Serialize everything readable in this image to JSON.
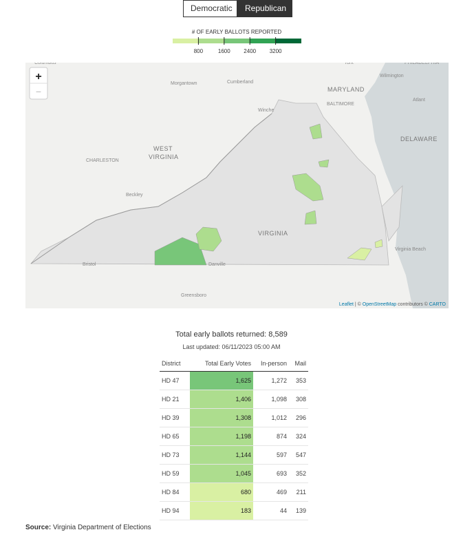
{
  "toggle": {
    "options": [
      "Democratic",
      "Republican"
    ],
    "active": 1
  },
  "legend": {
    "title": "# OF EARLY BALLOTS REPORTED",
    "range": [
      0,
      4000
    ],
    "ticks": [
      800,
      1600,
      2400,
      3200
    ],
    "colors": [
      "#d9f0a3",
      "#addd8e",
      "#78c679",
      "#31a354",
      "#006837"
    ]
  },
  "map": {
    "zoom_in": "+",
    "zoom_out": "−",
    "labels": [
      "Columbus",
      "York",
      "PHILADELPHIA",
      "Wilmington",
      "Morgantown",
      "Cumberland",
      "MARYLAND",
      "BALTIMORE",
      "Atlant",
      "Winche",
      "WEST",
      "VIRGINIA",
      "CHARLESTON",
      "DELAWARE",
      "Beckley",
      "VIRGINIA",
      "Bristol",
      "Virginia Beach",
      "Greensboro",
      "Danville"
    ],
    "attribution": {
      "leaflet": "Leaflet",
      "sep": " | © ",
      "osm": "OpenStreetMap",
      "mid": " contributors © ",
      "carto": "CARTO"
    }
  },
  "summary": {
    "total_label": "Total early ballots returned:",
    "total": "8,589",
    "updated": "Last updated: 06/11/2023 05:00 AM"
  },
  "table": {
    "headers": [
      "District",
      "Total Early Votes",
      "In-person",
      "Mail"
    ],
    "rows": [
      [
        "HD 47",
        {
          "value": 1625,
          "label": "1,625"
        },
        "1,272",
        "353"
      ],
      [
        "HD 21",
        {
          "value": 1406,
          "label": "1,406"
        },
        "1,098",
        "308"
      ],
      [
        "HD 39",
        {
          "value": 1308,
          "label": "1,308"
        },
        "1,012",
        "296"
      ],
      [
        "HD 65",
        {
          "value": 1198,
          "label": "1,198"
        },
        "874",
        "324"
      ],
      [
        "HD 73",
        {
          "value": 1144,
          "label": "1,144"
        },
        "597",
        "547"
      ],
      [
        "HD 59",
        {
          "value": 1045,
          "label": "1,045"
        },
        "693",
        "352"
      ],
      [
        "HD 84",
        {
          "value": 680,
          "label": "680"
        },
        "469",
        "211"
      ],
      [
        "HD 94",
        {
          "value": 183,
          "label": "183"
        },
        "44",
        "139"
      ]
    ]
  },
  "source": {
    "label": "Source:",
    "text": " Virginia Department of Elections"
  }
}
